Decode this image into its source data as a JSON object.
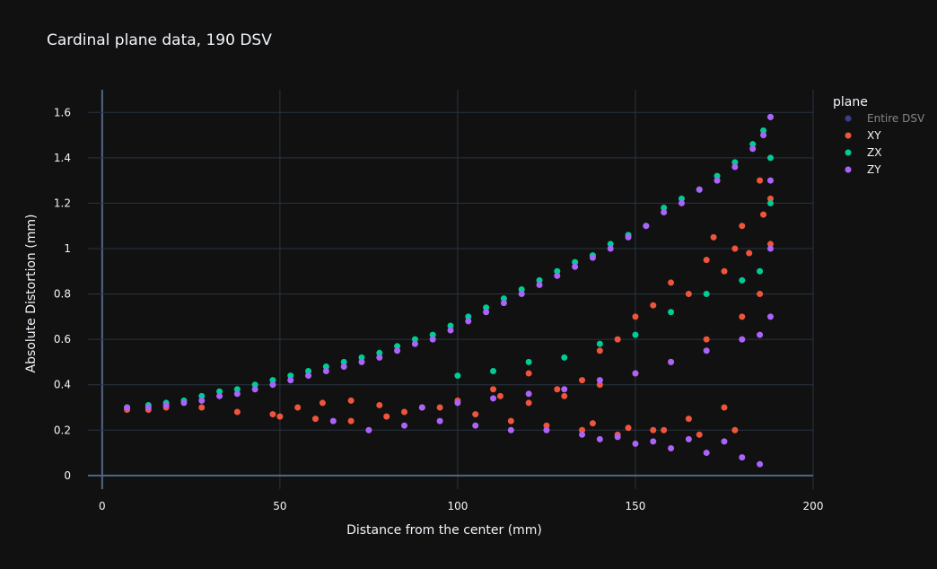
{
  "chart_data": {
    "type": "scatter",
    "title": "Cardinal plane data, 190 DSV",
    "xlabel": "Distance from the center (mm)",
    "ylabel": "Absolute Distortion (mm)",
    "xlim": [
      -4,
      200
    ],
    "ylim": [
      -0.06,
      1.7
    ],
    "xticks": [
      0,
      50,
      100,
      150,
      200
    ],
    "yticks": [
      0,
      0.2,
      0.4,
      0.6,
      0.8,
      1,
      1.2,
      1.4,
      1.6
    ],
    "grid": true,
    "legend": {
      "title": "plane",
      "placement": "top-right",
      "entries": [
        "Entire DSV",
        "XY",
        "ZX",
        "ZY"
      ]
    },
    "series": [
      {
        "name": "Entire DSV",
        "color": "#636efa",
        "hidden": true,
        "x": [],
        "y": []
      },
      {
        "name": "XY",
        "color": "#ef553b",
        "x": [
          7,
          13,
          18,
          28,
          38,
          48,
          55,
          62,
          70,
          78,
          85,
          95,
          105,
          112,
          120,
          128,
          135,
          140,
          145,
          150,
          155,
          160,
          165,
          170,
          172,
          175,
          178,
          180,
          182,
          185,
          186,
          188,
          188,
          175,
          165,
          155,
          145,
          135,
          125,
          115,
          160,
          170,
          180,
          185,
          150,
          140,
          130,
          120,
          110,
          100,
          90,
          80,
          70,
          60,
          50,
          178,
          168,
          158,
          148,
          138
        ],
        "y": [
          0.29,
          0.29,
          0.3,
          0.3,
          0.28,
          0.27,
          0.3,
          0.32,
          0.33,
          0.31,
          0.28,
          0.3,
          0.27,
          0.35,
          0.32,
          0.38,
          0.42,
          0.55,
          0.6,
          0.7,
          0.75,
          0.85,
          0.8,
          0.95,
          1.05,
          0.9,
          1.0,
          1.1,
          0.98,
          1.3,
          1.15,
          1.22,
          1.02,
          0.3,
          0.25,
          0.2,
          0.18,
          0.2,
          0.22,
          0.24,
          0.5,
          0.6,
          0.7,
          0.8,
          0.45,
          0.4,
          0.35,
          0.45,
          0.38,
          0.33,
          0.3,
          0.26,
          0.24,
          0.25,
          0.26,
          0.2,
          0.18,
          0.2,
          0.21,
          0.23
        ]
      },
      {
        "name": "ZX",
        "color": "#00cc96",
        "x": [
          7,
          13,
          18,
          23,
          28,
          33,
          38,
          43,
          48,
          53,
          58,
          63,
          68,
          73,
          78,
          83,
          88,
          93,
          98,
          103,
          108,
          113,
          118,
          123,
          128,
          133,
          138,
          143,
          148,
          153,
          158,
          163,
          168,
          173,
          178,
          183,
          186,
          188,
          188,
          188,
          150,
          160,
          170,
          180,
          185,
          140,
          130,
          120,
          110,
          100
        ],
        "y": [
          0.3,
          0.31,
          0.32,
          0.33,
          0.35,
          0.37,
          0.38,
          0.4,
          0.42,
          0.44,
          0.46,
          0.48,
          0.5,
          0.52,
          0.54,
          0.57,
          0.6,
          0.62,
          0.66,
          0.7,
          0.74,
          0.78,
          0.82,
          0.86,
          0.9,
          0.94,
          0.97,
          1.02,
          1.06,
          1.1,
          1.18,
          1.22,
          1.26,
          1.32,
          1.38,
          1.46,
          1.52,
          1.58,
          1.4,
          1.2,
          0.62,
          0.72,
          0.8,
          0.86,
          0.9,
          0.58,
          0.52,
          0.5,
          0.46,
          0.44
        ]
      },
      {
        "name": "ZY",
        "color": "#ab63fa",
        "x": [
          7,
          13,
          18,
          23,
          28,
          33,
          38,
          43,
          48,
          53,
          58,
          63,
          68,
          73,
          78,
          83,
          88,
          93,
          98,
          103,
          108,
          113,
          118,
          123,
          128,
          133,
          138,
          143,
          148,
          153,
          158,
          163,
          168,
          173,
          178,
          183,
          186,
          188,
          188,
          188,
          188,
          175,
          165,
          155,
          145,
          135,
          125,
          115,
          105,
          95,
          85,
          75,
          65,
          160,
          170,
          180,
          185,
          150,
          140,
          130,
          120,
          110,
          100,
          90,
          180,
          170,
          160,
          150,
          140,
          185
        ],
        "y": [
          0.3,
          0.3,
          0.31,
          0.32,
          0.33,
          0.35,
          0.36,
          0.38,
          0.4,
          0.42,
          0.44,
          0.46,
          0.48,
          0.5,
          0.52,
          0.55,
          0.58,
          0.6,
          0.64,
          0.68,
          0.72,
          0.76,
          0.8,
          0.84,
          0.88,
          0.92,
          0.96,
          1.0,
          1.05,
          1.1,
          1.16,
          1.2,
          1.26,
          1.3,
          1.36,
          1.44,
          1.5,
          1.58,
          1.3,
          1.0,
          0.7,
          0.15,
          0.16,
          0.15,
          0.17,
          0.18,
          0.2,
          0.2,
          0.22,
          0.24,
          0.22,
          0.2,
          0.24,
          0.5,
          0.55,
          0.6,
          0.62,
          0.45,
          0.42,
          0.38,
          0.36,
          0.34,
          0.32,
          0.3,
          0.08,
          0.1,
          0.12,
          0.14,
          0.16,
          0.05
        ]
      }
    ]
  }
}
